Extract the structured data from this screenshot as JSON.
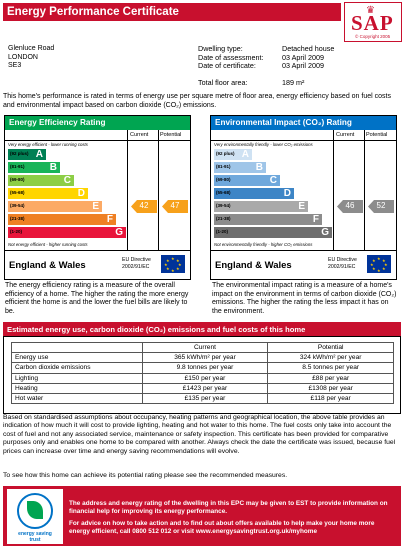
{
  "header": {
    "title": "Energy Performance Certificate"
  },
  "logo": {
    "text": "SAP",
    "copyright": "© Copyright 2005"
  },
  "address": {
    "line1": "Glenluce Road",
    "line2": "LONDON",
    "line3": "SE3"
  },
  "details": {
    "dwelling_type_label": "Dwelling type:",
    "dwelling_type": "Detached house",
    "assessment_label": "Date of assessment:",
    "assessment_date": "03 April 2009",
    "certificate_label": "Date of certificate:",
    "certificate_date": "03 April 2009",
    "floor_area_label": "Total floor area:",
    "floor_area": "189 m²"
  },
  "intro": "This home's performance is rated in terms of energy use per square metre of floor area, energy efficiency based on fuel costs and environmental impact based on carbon dioxide (CO₂) emissions.",
  "ratings": {
    "current_label": "Current",
    "potential_label": "Potential",
    "country": "England & Wales",
    "directive": "EU Directive\n2002/91/EC",
    "efficiency": {
      "title": "Energy Efficiency Rating",
      "top_note": "Very energy efficient - lower running costs",
      "bottom_note": "Not energy efficient - higher running costs",
      "current": 42,
      "potential": 47,
      "current_color": "#f7a11b",
      "potential_color": "#f7a11b",
      "bands": [
        {
          "range": "(92 plus)",
          "letter": "A",
          "color": "#008054"
        },
        {
          "range": "(81-91)",
          "letter": "B",
          "color": "#19b459"
        },
        {
          "range": "(69-80)",
          "letter": "C",
          "color": "#8dce46"
        },
        {
          "range": "(55-68)",
          "letter": "D",
          "color": "#ffd500"
        },
        {
          "range": "(39-54)",
          "letter": "E",
          "color": "#fcaa65"
        },
        {
          "range": "(21-38)",
          "letter": "F",
          "color": "#ef8023"
        },
        {
          "range": "(1-20)",
          "letter": "G",
          "color": "#e9153b"
        }
      ]
    },
    "environment": {
      "title": "Environmental Impact (CO₂) Rating",
      "top_note": "Very environmentally friendly - lower CO₂ emissions",
      "bottom_note": "Not environmentally friendly - higher CO₂ emissions",
      "current": 46,
      "potential": 52,
      "current_color": "#8c8c8c",
      "potential_color": "#8c8c8c",
      "bands": [
        {
          "range": "(92 plus)",
          "letter": "A",
          "color": "#cfe2f3"
        },
        {
          "range": "(81-91)",
          "letter": "B",
          "color": "#9fc5e8"
        },
        {
          "range": "(69-80)",
          "letter": "C",
          "color": "#6fa8dc"
        },
        {
          "range": "(55-68)",
          "letter": "D",
          "color": "#3d85c6"
        },
        {
          "range": "(39-54)",
          "letter": "E",
          "color": "#a9a9a9"
        },
        {
          "range": "(21-38)",
          "letter": "F",
          "color": "#8c8c8c"
        },
        {
          "range": "(1-20)",
          "letter": "G",
          "color": "#6e6e6e"
        }
      ]
    }
  },
  "explain": {
    "efficiency": "The energy efficiency rating is a measure of the overall efficiency of a home. The higher the rating the more energy efficient the home is and the lower the fuel bills are likely to be.",
    "environment": "The environmental impact rating is a measure of a home's impact on the environment in terms of carbon dioxide (CO₂) emissions. The higher the rating the less impact it has on the environment."
  },
  "costs": {
    "title": "Estimated energy use, carbon dioxide (CO₂) emissions and fuel costs of this home",
    "headers": [
      "",
      "Current",
      "Potential"
    ],
    "rows": [
      [
        "Energy use",
        "365 kWh/m² per year",
        "324 kWh/m² per year"
      ],
      [
        "Carbon dioxide emissions",
        "9.8 tonnes per year",
        "8.5 tonnes per year"
      ],
      [
        "Lighting",
        "£150 per year",
        "£88 per year"
      ],
      [
        "Heating",
        "£1423 per year",
        "£1308 per year"
      ],
      [
        "Hot water",
        "£135 per year",
        "£118 per year"
      ]
    ]
  },
  "basis": "Based on standardised assumptions about occupancy, heating patterns and geographical location, the above table provides an indication of how much it will cost to provide lighting, heating and hot water to this home. The fuel costs only take into account the cost of fuel and not any associated service, maintenance or safety inspection. This certificate has been provided for comparative purposes only and enables one home to be compared with another. Always check the date the certificate was issued, because fuel prices can increase over time and energy saving recommendations will evolve.",
  "to_see": "To see how this home can achieve its potential rating please see the recommended measures.",
  "est": {
    "logo_text": "energy saving trust",
    "line1": "The address and energy rating of the dwelling in this EPC may be given to EST to provide information on financial help for improving its energy performance.",
    "line2": "For advice on how to take action and to find out about offers available to help make your home more energy efficient, call  0800 512 012  or visit  www.energysavingtrust.org.uk/myhome"
  }
}
